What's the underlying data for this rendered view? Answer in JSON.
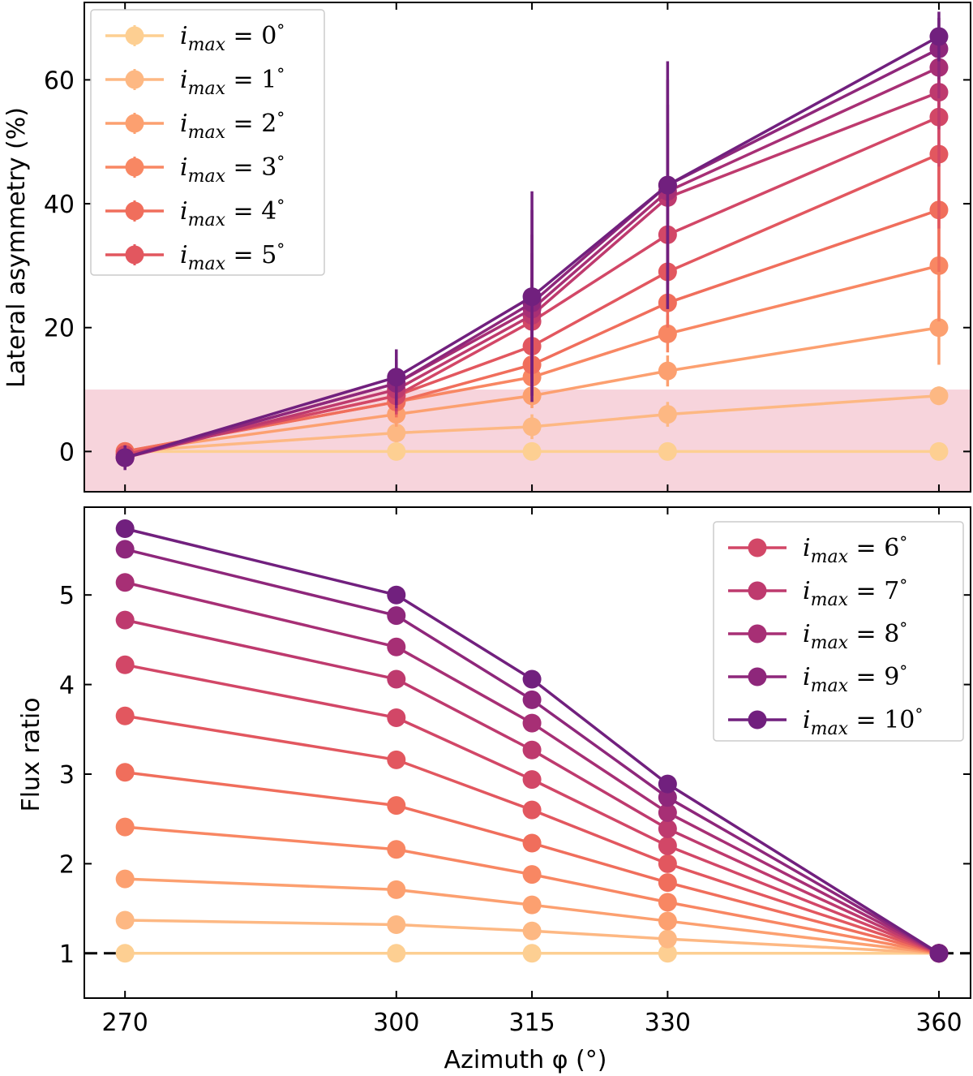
{
  "chart_data": [
    {
      "type": "line",
      "panel": "top",
      "title": "",
      "xlabel": "",
      "ylabel": "Lateral asymmetry (%)",
      "x": [
        270,
        300,
        315,
        330,
        360
      ],
      "xlim": [
        265.5,
        363.5
      ],
      "ylim": [
        -6.5,
        72.5
      ],
      "yticks": [
        0,
        20,
        40,
        60
      ],
      "grid": false,
      "shaded_band": {
        "y0": -6.5,
        "y1": 10,
        "color": "#f7d4dc"
      },
      "legend_position": "upper left",
      "legend_series_indices": [
        0,
        1,
        2,
        3,
        4,
        5
      ],
      "series": [
        {
          "name": "0",
          "color": "#fdcf92",
          "values": [
            0,
            0,
            0,
            0,
            0
          ],
          "errors": [
            0.5,
            0.5,
            0.5,
            0.5,
            0.5
          ]
        },
        {
          "name": "1",
          "color": "#fdb883",
          "values": [
            0,
            3,
            4,
            6,
            9
          ],
          "errors": [
            0.5,
            1.5,
            2,
            2,
            1.5
          ]
        },
        {
          "name": "2",
          "color": "#fca070",
          "values": [
            0,
            6,
            9,
            13,
            20
          ],
          "errors": [
            0.8,
            2,
            2,
            2.5,
            6
          ]
        },
        {
          "name": "3",
          "color": "#f88763",
          "values": [
            0,
            8,
            12,
            19,
            30
          ],
          "errors": [
            0.8,
            2,
            3,
            3,
            9
          ]
        },
        {
          "name": "4",
          "color": "#f06e5c",
          "values": [
            0,
            8,
            14,
            24,
            39
          ],
          "errors": [
            1,
            2.5,
            3.5,
            4,
            10
          ]
        },
        {
          "name": "5",
          "color": "#e2575f",
          "values": [
            -0.5,
            9,
            17,
            29,
            48
          ],
          "errors": [
            1,
            3,
            5,
            6,
            12
          ]
        },
        {
          "name": "6",
          "color": "#d24767",
          "values": [
            -0.5,
            9,
            21,
            35,
            54
          ],
          "errors": [
            1,
            3,
            7,
            8,
            8
          ]
        },
        {
          "name": "7",
          "color": "#be3a6e",
          "values": [
            -1,
            10,
            22,
            41,
            58
          ],
          "errors": [
            1.2,
            3.5,
            10,
            12,
            6
          ]
        },
        {
          "name": "8",
          "color": "#a72f75",
          "values": [
            -1,
            11,
            23,
            42,
            62
          ],
          "errors": [
            1.2,
            3.5,
            12,
            14,
            5
          ]
        },
        {
          "name": "9",
          "color": "#8e277b",
          "values": [
            -1,
            11,
            24,
            43,
            65
          ],
          "errors": [
            1.5,
            4,
            15,
            17,
            5
          ]
        },
        {
          "name": "10",
          "color": "#71207e",
          "values": [
            -1,
            12,
            25,
            43,
            67
          ],
          "errors": [
            2,
            4.5,
            17,
            20,
            4
          ]
        }
      ]
    },
    {
      "type": "line",
      "panel": "bottom",
      "title": "",
      "xlabel": "Azimuth φ (°)",
      "ylabel": "Flux ratio",
      "x": [
        270,
        300,
        315,
        330,
        360
      ],
      "xticks": [
        270,
        300,
        315,
        330,
        360
      ],
      "xlim": [
        265.5,
        363.5
      ],
      "ylim": [
        0.5,
        5.98
      ],
      "yticks": [
        1,
        2,
        3,
        4,
        5
      ],
      "grid": false,
      "reference_line": {
        "y": 1,
        "style": "dashed",
        "color": "#000000"
      },
      "legend_position": "upper right",
      "legend_series_indices": [
        6,
        7,
        8,
        9,
        10
      ],
      "series": [
        {
          "name": "0",
          "color": "#fdcf92",
          "values": [
            1.0,
            1.0,
            1.0,
            1.0,
            1.0
          ]
        },
        {
          "name": "1",
          "color": "#fdb883",
          "values": [
            1.37,
            1.32,
            1.25,
            1.16,
            1.0
          ]
        },
        {
          "name": "2",
          "color": "#fca070",
          "values": [
            1.83,
            1.71,
            1.54,
            1.36,
            1.0
          ]
        },
        {
          "name": "3",
          "color": "#f88763",
          "values": [
            2.41,
            2.16,
            1.88,
            1.57,
            1.0
          ]
        },
        {
          "name": "4",
          "color": "#f06e5c",
          "values": [
            3.02,
            2.65,
            2.23,
            1.79,
            1.0
          ]
        },
        {
          "name": "5",
          "color": "#e2575f",
          "values": [
            3.65,
            3.16,
            2.6,
            2.0,
            1.0
          ]
        },
        {
          "name": "6",
          "color": "#d24767",
          "values": [
            4.22,
            3.63,
            2.94,
            2.2,
            1.0
          ]
        },
        {
          "name": "7",
          "color": "#be3a6e",
          "values": [
            4.72,
            4.06,
            3.27,
            2.39,
            1.0
          ]
        },
        {
          "name": "8",
          "color": "#a72f75",
          "values": [
            5.14,
            4.42,
            3.57,
            2.57,
            1.0
          ]
        },
        {
          "name": "9",
          "color": "#8e277b",
          "values": [
            5.51,
            4.77,
            3.83,
            2.74,
            1.0
          ]
        },
        {
          "name": "10",
          "color": "#71207e",
          "values": [
            5.74,
            5.0,
            4.06,
            2.89,
            1.0
          ]
        }
      ]
    }
  ],
  "legend_text": {
    "var": "i",
    "sub": "max",
    "eq": " = ",
    "unit": "°"
  }
}
